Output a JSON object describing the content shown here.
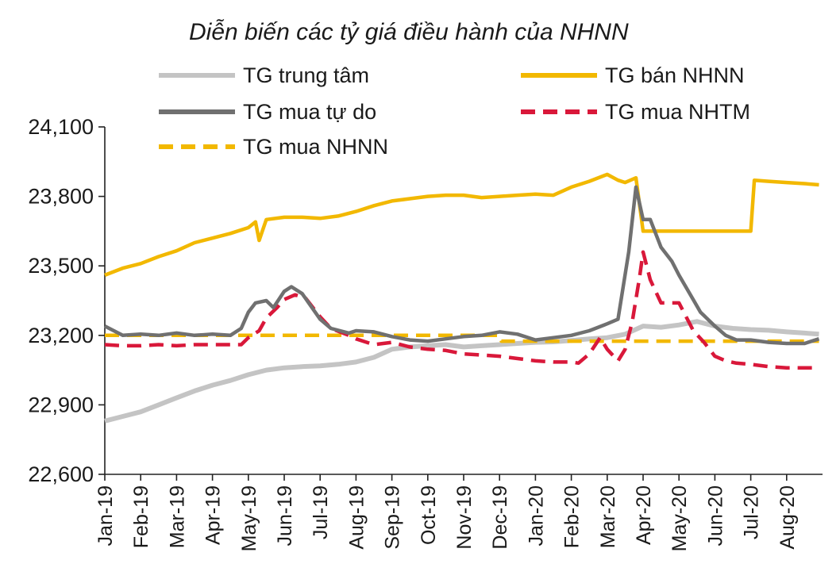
{
  "chart_data": {
    "type": "line",
    "title": "Diễn biến các tỷ giá điều hành của NHNN",
    "xlabel": "",
    "ylabel": "",
    "ylim": [
      22600,
      24100
    ],
    "yticks": [
      24100,
      23800,
      23500,
      23200,
      22900,
      22600
    ],
    "ytick_labels": [
      "24,100",
      "23,800",
      "23,500",
      "23,200",
      "22,900",
      "22,600"
    ],
    "x_range": [
      0,
      20
    ],
    "x_ticks": [
      0,
      1,
      2,
      3,
      4,
      5,
      6,
      7,
      8,
      9,
      10,
      11,
      12,
      13,
      14,
      15,
      16,
      17,
      18,
      19
    ],
    "x_tick_labels": [
      "Jan-19",
      "Feb-19",
      "Mar-19",
      "Apr-19",
      "May-19",
      "Jun-19",
      "Jul-19",
      "Aug-19",
      "Sep-19",
      "Oct-19",
      "Nov-19",
      "Dec-19",
      "Jan-20",
      "Feb-20",
      "Mar-20",
      "Apr-20",
      "May-20",
      "Jun-20",
      "Jul-20",
      "Aug-20"
    ],
    "legend": [
      {
        "label": "TG trung tâm",
        "color": "#c4c4c4",
        "style": "solid"
      },
      {
        "label": "TG bán NHNN",
        "color": "#f2b800",
        "style": "solid"
      },
      {
        "label": "TG mua tự do",
        "color": "#707070",
        "style": "solid"
      },
      {
        "label": "TG mua NHTM",
        "color": "#d9183a",
        "style": "dashed"
      },
      {
        "label": "TG mua NHNN",
        "color": "#f2b800",
        "style": "dashed"
      }
    ],
    "series": [
      {
        "name": "TG trung tâm",
        "color": "#c4c4c4",
        "style": "solid",
        "x": [
          0,
          0.5,
          1,
          1.5,
          2,
          2.5,
          3,
          3.5,
          4,
          4.5,
          5,
          5.5,
          6,
          6.5,
          7,
          7.5,
          8,
          8.5,
          9,
          9.5,
          10,
          10.5,
          11,
          11.5,
          12,
          12.5,
          13,
          13.5,
          14,
          14.5,
          15,
          15.5,
          16,
          16.5,
          17,
          17.5,
          18,
          18.5,
          19,
          19.5,
          19.9
        ],
        "values": [
          22830,
          22850,
          22870,
          22900,
          22930,
          22960,
          22985,
          23005,
          23030,
          23050,
          23060,
          23065,
          23068,
          23075,
          23085,
          23105,
          23140,
          23150,
          23155,
          23160,
          23150,
          23155,
          23160,
          23165,
          23170,
          23172,
          23178,
          23185,
          23190,
          23205,
          23240,
          23235,
          23245,
          23260,
          23240,
          23230,
          23225,
          23222,
          23215,
          23210,
          23205
        ]
      },
      {
        "name": "TG bán NHNN",
        "color": "#f2b800",
        "style": "solid",
        "x": [
          0,
          0.5,
          1,
          1.5,
          2,
          2.5,
          3,
          3.5,
          4,
          4.2,
          4.3,
          4.5,
          5,
          5.5,
          6,
          6.5,
          7,
          7.5,
          8,
          8.5,
          9,
          9.5,
          10,
          10.5,
          11,
          11.5,
          12,
          12.5,
          13,
          13.5,
          14,
          14.3,
          14.5,
          14.8,
          15,
          15.5,
          16,
          16.5,
          17,
          17.5,
          18,
          18.1,
          18.5,
          19,
          19.5,
          19.9
        ],
        "values": [
          23460,
          23490,
          23510,
          23540,
          23565,
          23600,
          23620,
          23640,
          23665,
          23690,
          23610,
          23700,
          23710,
          23710,
          23705,
          23715,
          23735,
          23760,
          23780,
          23790,
          23800,
          23805,
          23805,
          23795,
          23800,
          23805,
          23810,
          23805,
          23840,
          23865,
          23895,
          23870,
          23860,
          23880,
          23650,
          23650,
          23650,
          23650,
          23650,
          23650,
          23650,
          23870,
          23865,
          23860,
          23855,
          23850
        ]
      },
      {
        "name": "TG mua tự do",
        "color": "#707070",
        "style": "solid",
        "x": [
          0,
          0.5,
          1,
          1.5,
          2,
          2.5,
          3,
          3.5,
          3.8,
          4,
          4.2,
          4.5,
          4.7,
          5,
          5.2,
          5.5,
          6,
          6.3,
          6.8,
          7,
          7.5,
          8,
          8.5,
          9,
          9.5,
          10,
          10.5,
          11,
          11.5,
          12,
          12.5,
          13,
          13.5,
          14,
          14.3,
          14.6,
          14.8,
          15,
          15.2,
          15.5,
          15.8,
          16,
          16.3,
          16.6,
          17,
          17.3,
          17.6,
          18,
          18.5,
          19,
          19.5,
          19.9
        ],
        "values": [
          23240,
          23200,
          23205,
          23200,
          23210,
          23200,
          23205,
          23200,
          23230,
          23300,
          23340,
          23350,
          23320,
          23390,
          23410,
          23380,
          23270,
          23230,
          23210,
          23220,
          23215,
          23195,
          23180,
          23175,
          23185,
          23195,
          23200,
          23215,
          23205,
          23180,
          23190,
          23200,
          23220,
          23250,
          23270,
          23560,
          23840,
          23700,
          23700,
          23580,
          23520,
          23460,
          23380,
          23300,
          23240,
          23200,
          23180,
          23180,
          23170,
          23165,
          23165,
          23185
        ]
      },
      {
        "name": "TG mua NHTM",
        "color": "#d9183a",
        "style": "dashed",
        "x": [
          0,
          0.5,
          1,
          1.5,
          2,
          2.5,
          3,
          3.5,
          3.8,
          4,
          4.3,
          4.5,
          4.8,
          5,
          5.3,
          5.6,
          6,
          6.3,
          6.8,
          7,
          7.5,
          8,
          8.5,
          9,
          9.5,
          10,
          10.5,
          11,
          11.5,
          12,
          12.5,
          13,
          13.2,
          13.5,
          13.8,
          14,
          14.3,
          14.5,
          14.7,
          14.9,
          15,
          15.2,
          15.5,
          16,
          16.4,
          16.7,
          17,
          17.3,
          17.6,
          18,
          18.5,
          19,
          19.5,
          19.9
        ],
        "values": [
          23160,
          23155,
          23155,
          23160,
          23155,
          23160,
          23160,
          23160,
          23160,
          23190,
          23220,
          23275,
          23320,
          23355,
          23375,
          23360,
          23280,
          23230,
          23200,
          23185,
          23160,
          23170,
          23150,
          23140,
          23135,
          23120,
          23115,
          23110,
          23100,
          23090,
          23085,
          23085,
          23080,
          23120,
          23190,
          23140,
          23090,
          23140,
          23260,
          23450,
          23560,
          23440,
          23340,
          23340,
          23220,
          23170,
          23110,
          23090,
          23080,
          23075,
          23065,
          23060,
          23060,
          23060
        ]
      },
      {
        "name": "TG mua NHNN",
        "color": "#f2b800",
        "style": "dashed",
        "x": [
          0,
          11,
          11.05,
          14.9,
          14.95,
          19.9
        ],
        "values": [
          23200,
          23200,
          23175,
          23175,
          23175,
          23175
        ]
      }
    ]
  }
}
